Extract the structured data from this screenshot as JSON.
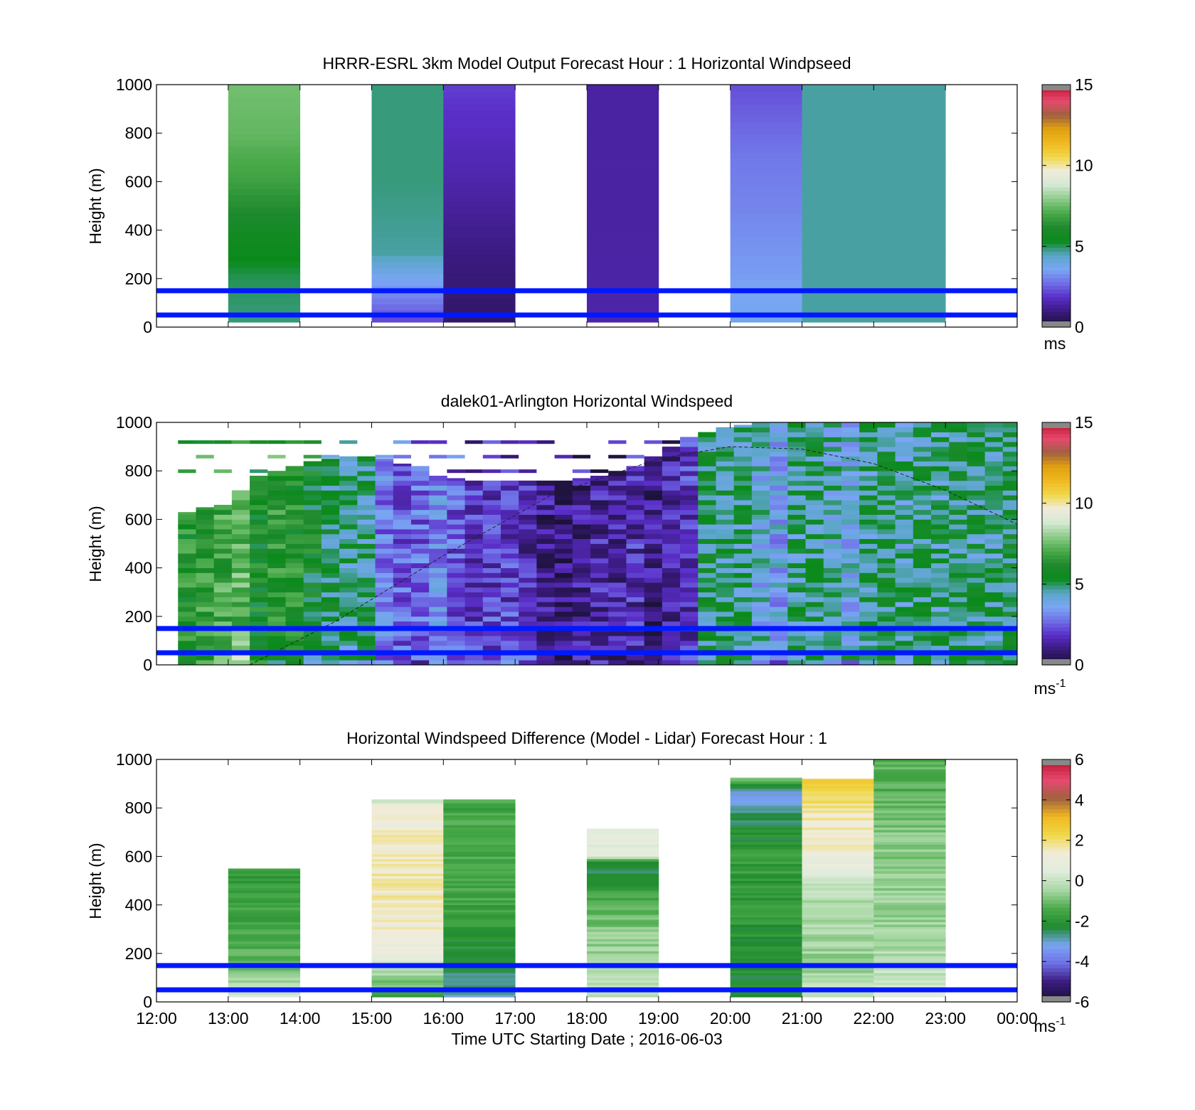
{
  "colors": {
    "speed_colormap": [
      "#1c1238",
      "#3a1a7e",
      "#5a2ec8",
      "#6f6fe6",
      "#7aa6f4",
      "#5aa6c8",
      "#0a8a1a",
      "#1e8a2e",
      "#4aaa4a",
      "#8ccc88",
      "#d4e8d2",
      "#f0ecdc",
      "#f0d848",
      "#f0b820",
      "#e0a010",
      "#a06040",
      "#e84870",
      "#c01830"
    ],
    "diff_colormap": [
      "#1c1238",
      "#3a1a7e",
      "#6f6fe6",
      "#7aa6f4",
      "#1e8a2e",
      "#4aaa4a",
      "#a8d8a4",
      "#e0ecdc",
      "#f0ecdc",
      "#f0d848",
      "#f0b820",
      "#a06040",
      "#e84870",
      "#c01830"
    ],
    "reference_line": "#0018ff"
  },
  "chart_data": [
    {
      "type": "heatmap",
      "title": "HRRR-ESRL 3km Model Output   Forecast Hour : 1 Horizontal Windpseed",
      "ylabel": "Height (m)",
      "ylim": [
        0,
        1000
      ],
      "y_ticks": [
        "0",
        "200",
        "400",
        "600",
        "800",
        "1000"
      ],
      "colorbar": {
        "ticks": [
          "0",
          "5",
          "10",
          "15"
        ],
        "range": [
          0,
          15
        ],
        "unit": "ms"
      },
      "reference_lines_m": [
        50,
        150
      ],
      "columns": [
        {
          "start_hour": 13,
          "top_m": 1000,
          "profile": [
            [
              0,
              2.2
            ],
            [
              30,
              4.8
            ],
            [
              200,
              5.0
            ],
            [
              400,
              5.8
            ],
            [
              600,
              6.8
            ],
            [
              800,
              7.4
            ],
            [
              1000,
              7.6
            ]
          ]
        },
        {
          "start_hour": 15,
          "top_m": 1000,
          "profile": [
            [
              0,
              1.8
            ],
            [
              80,
              2.6
            ],
            [
              200,
              3.6
            ],
            [
              300,
              4.6
            ],
            [
              600,
              4.8
            ],
            [
              1000,
              4.8
            ]
          ]
        },
        {
          "start_hour": 16,
          "top_m": 1000,
          "profile": [
            [
              0,
              0.6
            ],
            [
              300,
              0.9
            ],
            [
              600,
              1.4
            ],
            [
              900,
              1.8
            ],
            [
              1000,
              2.0
            ]
          ]
        },
        {
          "start_hour": 18,
          "top_m": 1000,
          "profile": [
            [
              0,
              1.4
            ],
            [
              400,
              1.3
            ],
            [
              1000,
              1.3
            ]
          ]
        },
        {
          "start_hour": 20,
          "top_m": 1000,
          "profile": [
            [
              0,
              3.8
            ],
            [
              200,
              3.4
            ],
            [
              500,
              3.0
            ],
            [
              700,
              2.8
            ],
            [
              1000,
              2.2
            ]
          ]
        },
        {
          "start_hour": 21,
          "top_m": 1000,
          "profile": [
            [
              0,
              4.6
            ],
            [
              1000,
              4.6
            ]
          ]
        },
        {
          "start_hour": 22,
          "top_m": 1000,
          "profile": [
            [
              0,
              4.6
            ],
            [
              1000,
              4.6
            ]
          ]
        }
      ]
    },
    {
      "type": "heatmap",
      "title": "dalek01-Arlington  Horizontal Windspeed",
      "ylabel": "Height (m)",
      "ylim": [
        0,
        1000
      ],
      "y_ticks": [
        "0",
        "200",
        "400",
        "600",
        "800",
        "1000"
      ],
      "colorbar": {
        "ticks": [
          "0",
          "5",
          "10",
          "15"
        ],
        "range": [
          0,
          15
        ],
        "unit": "ms",
        "unit_sup": "-1"
      },
      "reference_lines_m": [
        50,
        150
      ],
      "time_range_h": [
        12,
        24
      ],
      "column_width_h": 0.25,
      "column_tops_m": [
        630,
        650,
        660,
        720,
        780,
        800,
        820,
        840,
        850,
        860,
        860,
        850,
        830,
        820,
        780,
        770,
        760,
        760,
        760,
        760,
        760,
        760,
        770,
        780,
        800,
        820,
        860,
        900,
        940,
        960,
        980,
        990,
        1000,
        1000,
        1000,
        1000,
        1000,
        1000,
        1000,
        1000,
        1000,
        1000,
        1000,
        1000,
        1000,
        1000,
        1000,
        1000
      ],
      "column_speeds": [
        6.2,
        6.5,
        6.8,
        7.5,
        6.0,
        6.4,
        6.2,
        5.6,
        5.0,
        4.6,
        4.8,
        2.8,
        2.4,
        2.6,
        3.2,
        2.4,
        1.8,
        2.0,
        2.0,
        1.6,
        1.0,
        0.9,
        1.0,
        1.4,
        1.2,
        1.6,
        1.0,
        1.4,
        1.8,
        5.0,
        4.8,
        4.6,
        4.0,
        3.6,
        4.6,
        4.8,
        4.2,
        3.8,
        4.6,
        5.0,
        4.4,
        4.8,
        4.6,
        5.0,
        4.8,
        4.6,
        5.2,
        4.4
      ],
      "sparse_high_returns_m": [
        920,
        860,
        800
      ],
      "curve_points": [
        [
          13.3,
          0
        ],
        [
          14.5,
          180
        ],
        [
          16.0,
          450
        ],
        [
          17.5,
          700
        ],
        [
          19.0,
          850
        ],
        [
          20.0,
          900
        ],
        [
          21.0,
          890
        ],
        [
          22.0,
          830
        ],
        [
          23.0,
          720
        ],
        [
          24.0,
          580
        ]
      ]
    },
    {
      "type": "heatmap",
      "title": "Horizontal Windspeed Difference (Model - Lidar) Forecast Hour : 1",
      "ylabel": "Height (m)",
      "xlabel": "Time UTC  Starting Date ; 2016-06-03",
      "ylim": [
        0,
        1000
      ],
      "y_ticks": [
        "0",
        "200",
        "400",
        "600",
        "800",
        "1000"
      ],
      "x_ticks": [
        "12:00",
        "13:00",
        "14:00",
        "15:00",
        "16:00",
        "17:00",
        "18:00",
        "19:00",
        "20:00",
        "21:00",
        "22:00",
        "23:00",
        "00:00"
      ],
      "colorbar": {
        "ticks": [
          "-6",
          "-4",
          "-2",
          "0",
          "2",
          "4",
          "6"
        ],
        "range": [
          -6,
          6
        ],
        "unit": "ms",
        "unit_sup": "-1"
      },
      "reference_lines_m": [
        50,
        150
      ],
      "columns": [
        {
          "start_hour": 13,
          "top_m": 550,
          "profile": [
            [
              0,
              0.5
            ],
            [
              60,
              0.0
            ],
            [
              120,
              -1.0
            ],
            [
              300,
              -1.6
            ],
            [
              550,
              -1.8
            ]
          ]
        },
        {
          "start_hour": 15,
          "top_m": 835,
          "profile": [
            [
              0,
              -2.0
            ],
            [
              150,
              0.2
            ],
            [
              220,
              1.2
            ],
            [
              500,
              1.7
            ],
            [
              800,
              1.3
            ],
            [
              835,
              0.0
            ]
          ]
        },
        {
          "start_hour": 16,
          "top_m": 835,
          "profile": [
            [
              0,
              -3.0
            ],
            [
              150,
              -2.4
            ],
            [
              300,
              -1.8
            ],
            [
              600,
              -1.4
            ],
            [
              835,
              -1.6
            ]
          ]
        },
        {
          "start_hour": 18,
          "top_m": 715,
          "profile": [
            [
              0,
              0.2
            ],
            [
              100,
              -0.4
            ],
            [
              250,
              -0.6
            ],
            [
              450,
              -1.6
            ],
            [
              570,
              -2.6
            ],
            [
              600,
              0.6
            ],
            [
              715,
              0.8
            ]
          ]
        },
        {
          "start_hour": 20,
          "top_m": 925,
          "profile": [
            [
              0,
              -2.4
            ],
            [
              300,
              -2.0
            ],
            [
              600,
              -1.8
            ],
            [
              800,
              -2.6
            ],
            [
              860,
              -3.4
            ],
            [
              925,
              -0.8
            ]
          ]
        },
        {
          "start_hour": 21,
          "top_m": 920,
          "profile": [
            [
              0,
              0.4
            ],
            [
              150,
              -0.6
            ],
            [
              450,
              -0.2
            ],
            [
              550,
              0.6
            ],
            [
              650,
              1.4
            ],
            [
              800,
              1.8
            ],
            [
              870,
              2.4
            ],
            [
              920,
              2.6
            ]
          ]
        },
        {
          "start_hour": 22,
          "top_m": 1000,
          "profile": [
            [
              0,
              0.6
            ],
            [
              150,
              -0.2
            ],
            [
              400,
              -0.6
            ],
            [
              700,
              -0.8
            ],
            [
              900,
              -1.4
            ],
            [
              1000,
              -1.2
            ]
          ]
        }
      ]
    }
  ]
}
